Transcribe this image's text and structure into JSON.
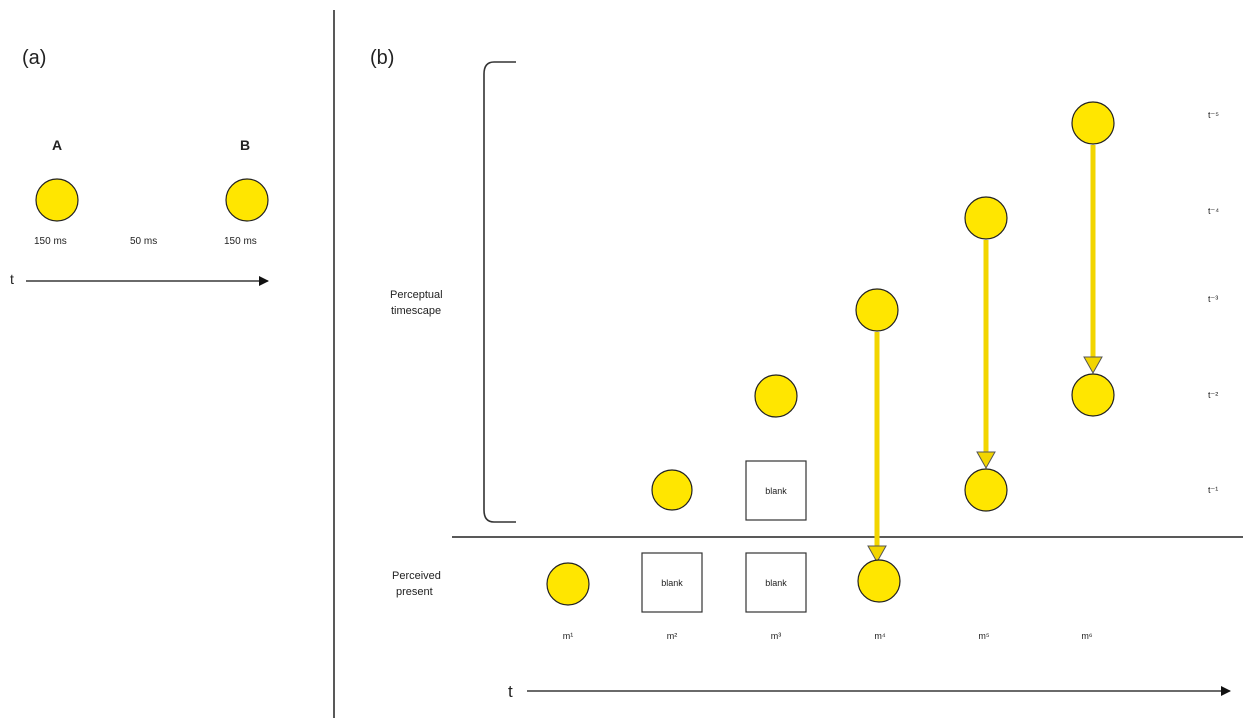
{
  "panel_a": {
    "label": "(a)",
    "stim_a": "A",
    "stim_b": "B",
    "dur_a": "150 ms",
    "gap": "50 ms",
    "dur_b": "150 ms",
    "t_label": "t"
  },
  "panel_b": {
    "label": "(b)",
    "timescape_line1": "Perceptual",
    "timescape_line2": "timescape",
    "present_line1": "Perceived",
    "present_line2": "present",
    "blank": "blank",
    "m_labels": [
      "m¹",
      "m²",
      "m³",
      "m⁴",
      "m⁵",
      "m⁶"
    ],
    "t_levels": [
      "t⁻⁵",
      "t⁻⁴",
      "t⁻³",
      "t⁻²",
      "t⁻¹"
    ],
    "t_label": "t"
  },
  "colors": {
    "stimulus": "#FFE600",
    "arrow": "#F2D500"
  }
}
